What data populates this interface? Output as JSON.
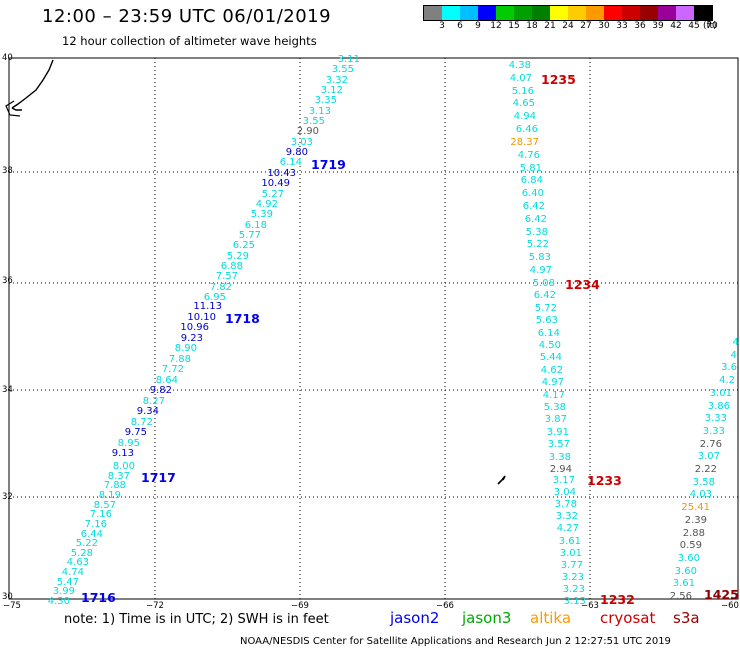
{
  "header": {
    "title": "12:00 – 23:59 UTC 06/01/2019",
    "subtitle": "12 hour collection of altimeter wave heights"
  },
  "legend": {
    "unit": "(ft)",
    "bins": [
      {
        "label": "3",
        "color": "#808080"
      },
      {
        "label": "6",
        "color": "#00ffff"
      },
      {
        "label": "9",
        "color": "#00bfff"
      },
      {
        "label": "12",
        "color": "#0000ff"
      },
      {
        "label": "15",
        "color": "#00cc00"
      },
      {
        "label": "18",
        "color": "#00a000"
      },
      {
        "label": "21",
        "color": "#008000"
      },
      {
        "label": "24",
        "color": "#ffff00"
      },
      {
        "label": "27",
        "color": "#ffcc00"
      },
      {
        "label": "30",
        "color": "#ff9900"
      },
      {
        "label": "33",
        "color": "#ff0000"
      },
      {
        "label": "36",
        "color": "#cc0000"
      },
      {
        "label": "39",
        "color": "#990000"
      },
      {
        "label": "42",
        "color": "#990099"
      },
      {
        "label": "45",
        "color": "#cc66ff"
      },
      {
        "label": "70",
        "color": "#000000"
      }
    ]
  },
  "axes": {
    "lat_labels": [
      "40",
      "38",
      "36",
      "34",
      "32",
      "30"
    ],
    "lon_labels": [
      "−75",
      "−72",
      "−69",
      "−66",
      "−63",
      "−60"
    ]
  },
  "colors": {
    "light": "#00dddd",
    "mid": "#0000cc",
    "grey": "#555555",
    "orange": "#ee9900",
    "red": "#cc0000",
    "pass_blue": "#0000ee",
    "pass_red": "#cc0000"
  },
  "tracks": {
    "t1719": {
      "pass": "1719",
      "values": [
        {
          "v": "3.11",
          "c": "light"
        },
        {
          "v": "3.55",
          "c": "light"
        },
        {
          "v": "3.32",
          "c": "light"
        },
        {
          "v": "3.12",
          "c": "light"
        },
        {
          "v": "3.35",
          "c": "light"
        },
        {
          "v": "3.13",
          "c": "light"
        },
        {
          "v": "3.55",
          "c": "light"
        },
        {
          "v": "2.90",
          "c": "grey"
        },
        {
          "v": "3.03",
          "c": "light"
        },
        {
          "v": "9.80",
          "c": "mid"
        },
        {
          "v": "6.14",
          "c": "light"
        },
        {
          "v": "10.43",
          "c": "mid"
        },
        {
          "v": "10.49",
          "c": "mid"
        },
        {
          "v": "5.27",
          "c": "light"
        },
        {
          "v": "4.92",
          "c": "light"
        },
        {
          "v": "5.39",
          "c": "light"
        },
        {
          "v": "6.18",
          "c": "light"
        },
        {
          "v": "5.77",
          "c": "light"
        },
        {
          "v": "6.25",
          "c": "light"
        },
        {
          "v": "5.29",
          "c": "light"
        },
        {
          "v": "6.88",
          "c": "light"
        },
        {
          "v": "7.57",
          "c": "light"
        },
        {
          "v": "7.82",
          "c": "light"
        },
        {
          "v": "6.95",
          "c": "light"
        }
      ]
    },
    "t1718": {
      "pass": "1718",
      "values": [
        {
          "v": "11.13",
          "c": "mid"
        },
        {
          "v": "10.10",
          "c": "mid"
        },
        {
          "v": "10.96",
          "c": "mid"
        },
        {
          "v": "9.23",
          "c": "mid"
        },
        {
          "v": "8.90",
          "c": "light"
        },
        {
          "v": "7.88",
          "c": "light"
        },
        {
          "v": "7.72",
          "c": "light"
        },
        {
          "v": "8.64",
          "c": "light"
        },
        {
          "v": "9.82",
          "c": "mid"
        },
        {
          "v": "8.27",
          "c": "light"
        },
        {
          "v": "9.34",
          "c": "mid"
        },
        {
          "v": "8.72",
          "c": "light"
        },
        {
          "v": "9.75",
          "c": "mid"
        },
        {
          "v": "8.95",
          "c": "light"
        },
        {
          "v": "9.13",
          "c": "mid"
        }
      ]
    },
    "t1717": {
      "pass": "1717",
      "values": [
        {
          "v": "8.00",
          "c": "light"
        },
        {
          "v": "8.37",
          "c": "light"
        },
        {
          "v": "7.88",
          "c": "light"
        },
        {
          "v": "8.19",
          "c": "light"
        },
        {
          "v": "8.57",
          "c": "light"
        },
        {
          "v": "7.16",
          "c": "light"
        },
        {
          "v": "7.16",
          "c": "light"
        },
        {
          "v": "6.44",
          "c": "light"
        },
        {
          "v": "5.22",
          "c": "light"
        },
        {
          "v": "5.28",
          "c": "light"
        },
        {
          "v": "4.63",
          "c": "light"
        },
        {
          "v": "4.74",
          "c": "light"
        },
        {
          "v": "5.47",
          "c": "light"
        },
        {
          "v": "3.99",
          "c": "light"
        },
        {
          "v": "4.30",
          "c": "light"
        }
      ],
      "end_pass": "1716"
    },
    "t1235": {
      "pass": "1235",
      "values": [
        {
          "v": "4.38",
          "c": "light"
        },
        {
          "v": "4.07",
          "c": "light"
        },
        {
          "v": "5.16",
          "c": "light"
        },
        {
          "v": "4.65",
          "c": "light"
        },
        {
          "v": "4.94",
          "c": "light"
        },
        {
          "v": "6.46",
          "c": "light"
        },
        {
          "v": "28.37",
          "c": "orange"
        },
        {
          "v": "4.76",
          "c": "light"
        },
        {
          "v": "5.81",
          "c": "light"
        },
        {
          "v": "6.84",
          "c": "light"
        },
        {
          "v": "6.40",
          "c": "light"
        },
        {
          "v": "6.42",
          "c": "light"
        },
        {
          "v": "6.42",
          "c": "light"
        },
        {
          "v": "5.38",
          "c": "light"
        },
        {
          "v": "5.22",
          "c": "light"
        },
        {
          "v": "5.83",
          "c": "light"
        },
        {
          "v": "4.97",
          "c": "light"
        }
      ]
    },
    "t1234": {
      "pass": "1234",
      "values": [
        {
          "v": "5.08",
          "c": "light"
        },
        {
          "v": "6.42",
          "c": "light"
        },
        {
          "v": "5.72",
          "c": "light"
        },
        {
          "v": "5.63",
          "c": "light"
        },
        {
          "v": "6.14",
          "c": "light"
        },
        {
          "v": "4.50",
          "c": "light"
        },
        {
          "v": "5.44",
          "c": "light"
        },
        {
          "v": "4.62",
          "c": "light"
        },
        {
          "v": "4.97",
          "c": "light"
        },
        {
          "v": "4.17",
          "c": "light"
        },
        {
          "v": "5.38",
          "c": "light"
        },
        {
          "v": "3.87",
          "c": "light"
        },
        {
          "v": "3.91",
          "c": "light"
        },
        {
          "v": "3.57",
          "c": "light"
        },
        {
          "v": "3.38",
          "c": "light"
        },
        {
          "v": "2.94",
          "c": "grey"
        }
      ]
    },
    "t1233": {
      "pass": "1233",
      "values": [
        {
          "v": "3.17",
          "c": "light"
        },
        {
          "v": "3.04",
          "c": "light"
        },
        {
          "v": "3.78",
          "c": "light"
        },
        {
          "v": "3.32",
          "c": "light"
        },
        {
          "v": "4.27",
          "c": "light"
        },
        {
          "v": "3.61",
          "c": "light"
        },
        {
          "v": "3.01",
          "c": "light"
        },
        {
          "v": "3.77",
          "c": "light"
        },
        {
          "v": "3.23",
          "c": "light"
        },
        {
          "v": "3.23",
          "c": "light"
        },
        {
          "v": "3.13",
          "c": "light"
        }
      ],
      "end_pass": "1232"
    },
    "t1425": {
      "pass": "1425",
      "values": [
        {
          "v": "4.",
          "c": "light"
        },
        {
          "v": "4.",
          "c": "light"
        },
        {
          "v": "3.6",
          "c": "light"
        },
        {
          "v": "4.2",
          "c": "light"
        },
        {
          "v": "3.01",
          "c": "light"
        },
        {
          "v": "3.86",
          "c": "light"
        },
        {
          "v": "3.33",
          "c": "light"
        },
        {
          "v": "3.33",
          "c": "light"
        },
        {
          "v": "2.76",
          "c": "grey"
        },
        {
          "v": "3.07",
          "c": "light"
        },
        {
          "v": "2.22",
          "c": "grey"
        },
        {
          "v": "3.58",
          "c": "light"
        },
        {
          "v": "4.03",
          "c": "light"
        },
        {
          "v": "25.41",
          "c": "orange"
        },
        {
          "v": "2.39",
          "c": "grey"
        },
        {
          "v": "2.88",
          "c": "grey"
        },
        {
          "v": "0.59",
          "c": "grey"
        },
        {
          "v": "3.60",
          "c": "light"
        },
        {
          "v": "3.60",
          "c": "light"
        },
        {
          "v": "3.61",
          "c": "light"
        },
        {
          "v": "2.56",
          "c": "grey"
        }
      ]
    }
  },
  "footer": {
    "note": "note:  1) Time is in UTC;  2) SWH is in feet",
    "satellites": [
      {
        "name": "jason2",
        "color": "#0000ee"
      },
      {
        "name": "jason3",
        "color": "#00aa00"
      },
      {
        "name": "altika",
        "color": "#ff9900"
      },
      {
        "name": "cryosat",
        "color": "#cc0000"
      },
      {
        "name": "s3a",
        "color": "#990000"
      }
    ],
    "credit": "NOAA/NESDIS Center for Satellite Applications and Research    Jun  2 12:27:51 UTC 2019"
  }
}
